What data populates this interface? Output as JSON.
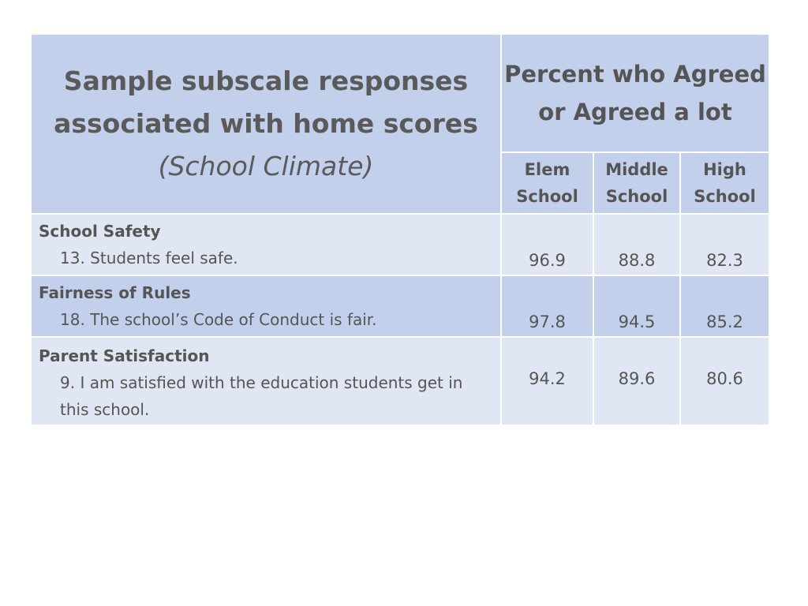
{
  "header": {
    "title_line1": "Sample subscale responses",
    "title_line2": "associated with home scores",
    "title_italic": "(School Climate)",
    "percent_header": "Percent who Agreed or Agreed a lot",
    "columns": [
      "Elem School",
      "Middle School",
      "High School"
    ]
  },
  "rows": [
    {
      "category": "School Safety",
      "item": "13. Students feel safe.",
      "values": [
        "96.9",
        "88.8",
        "82.3"
      ]
    },
    {
      "category": "Fairness of Rules",
      "item": "18. The school’s Code of Conduct is fair.",
      "values": [
        "97.8",
        "94.5",
        "85.2"
      ]
    },
    {
      "category": "Parent Satisfaction",
      "item": "9. I am satisfied with the education students get in this school.",
      "values": [
        "94.2",
        "89.6",
        "80.6"
      ]
    }
  ],
  "colors": {
    "header": "#c3d0ec",
    "light_row": "#e0e6f3",
    "text": "#555555"
  }
}
